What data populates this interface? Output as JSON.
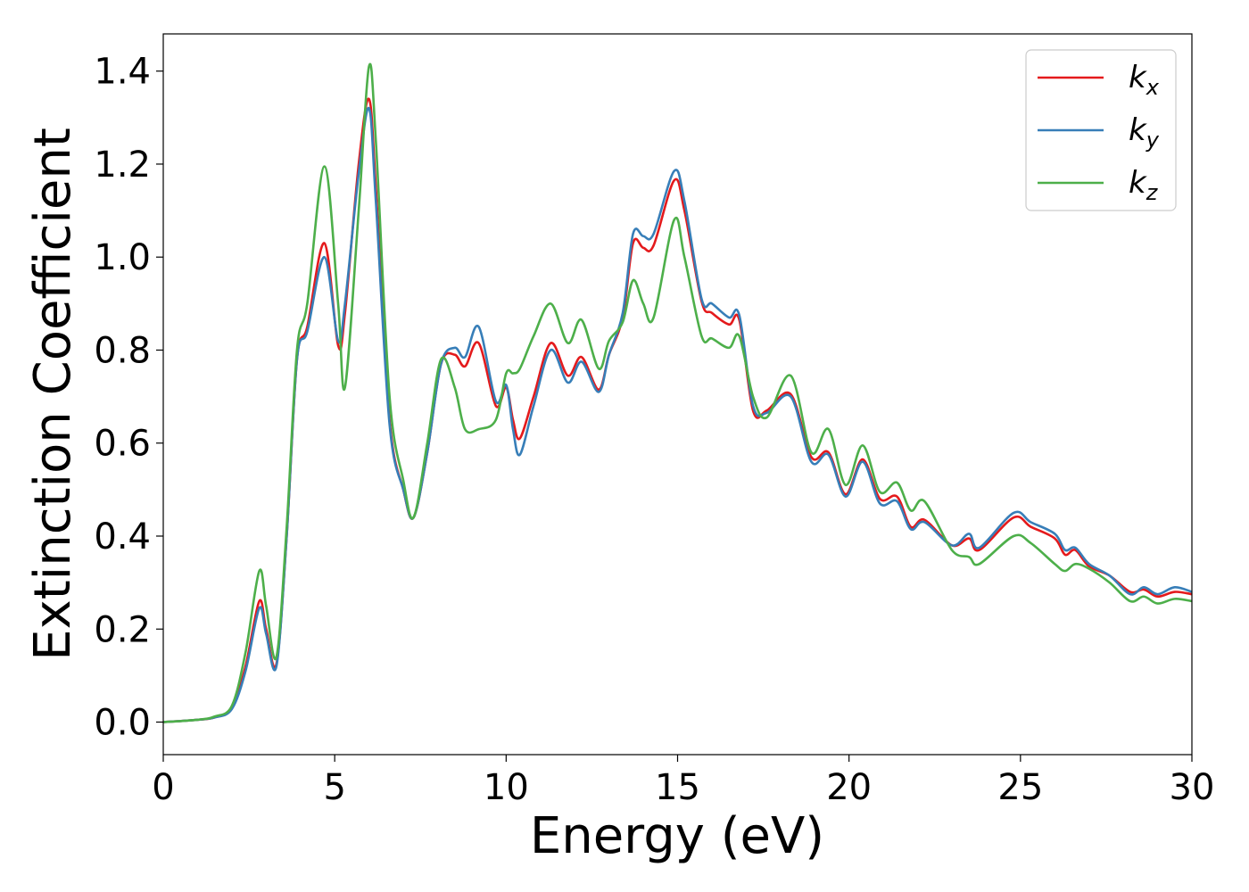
{
  "chart_data": {
    "type": "line",
    "xlabel": "Energy (eV)",
    "ylabel": "Extinction Coefficient",
    "xlim": [
      0,
      30
    ],
    "ylim": [
      -0.07,
      1.48
    ],
    "xticks": [
      0,
      5,
      10,
      15,
      20,
      25,
      30
    ],
    "xtick_labels": [
      "0",
      "5",
      "10",
      "15",
      "20",
      "25",
      "30"
    ],
    "yticks": [
      0.0,
      0.2,
      0.4,
      0.6,
      0.8,
      1.0,
      1.2,
      1.4
    ],
    "ytick_labels": [
      "0.0",
      "0.2",
      "0.4",
      "0.6",
      "0.8",
      "1.0",
      "1.2",
      "1.4"
    ],
    "grid": false,
    "legend_position": "top-right",
    "series": [
      {
        "name": "k",
        "subscript": "x",
        "color": "#e41a1c",
        "points": [
          [
            0,
            0
          ],
          [
            1,
            0.005
          ],
          [
            1.5,
            0.01
          ],
          [
            2,
            0.03
          ],
          [
            2.4,
            0.12
          ],
          [
            2.8,
            0.26
          ],
          [
            3.0,
            0.2
          ],
          [
            3.3,
            0.125
          ],
          [
            3.6,
            0.4
          ],
          [
            3.9,
            0.78
          ],
          [
            4.2,
            0.85
          ],
          [
            4.7,
            1.03
          ],
          [
            5.1,
            0.81
          ],
          [
            5.3,
            0.88
          ],
          [
            5.7,
            1.2
          ],
          [
            6.0,
            1.34
          ],
          [
            6.2,
            1.15
          ],
          [
            6.6,
            0.65
          ],
          [
            7.0,
            0.5
          ],
          [
            7.3,
            0.44
          ],
          [
            7.7,
            0.58
          ],
          [
            8.1,
            0.77
          ],
          [
            8.5,
            0.79
          ],
          [
            8.8,
            0.765
          ],
          [
            9.2,
            0.815
          ],
          [
            9.7,
            0.68
          ],
          [
            10.0,
            0.72
          ],
          [
            10.2,
            0.65
          ],
          [
            10.4,
            0.61
          ],
          [
            10.8,
            0.7
          ],
          [
            11.3,
            0.815
          ],
          [
            11.8,
            0.745
          ],
          [
            12.2,
            0.785
          ],
          [
            12.7,
            0.715
          ],
          [
            13.0,
            0.79
          ],
          [
            13.4,
            0.87
          ],
          [
            13.7,
            1.03
          ],
          [
            14.0,
            1.02
          ],
          [
            14.3,
            1.025
          ],
          [
            14.9,
            1.165
          ],
          [
            15.2,
            1.1
          ],
          [
            15.7,
            0.905
          ],
          [
            16.0,
            0.88
          ],
          [
            16.5,
            0.855
          ],
          [
            16.8,
            0.865
          ],
          [
            17.2,
            0.67
          ],
          [
            17.6,
            0.67
          ],
          [
            18.3,
            0.705
          ],
          [
            18.9,
            0.57
          ],
          [
            19.4,
            0.58
          ],
          [
            19.9,
            0.49
          ],
          [
            20.4,
            0.565
          ],
          [
            20.9,
            0.48
          ],
          [
            21.4,
            0.485
          ],
          [
            21.8,
            0.42
          ],
          [
            22.2,
            0.435
          ],
          [
            23.0,
            0.38
          ],
          [
            23.5,
            0.395
          ],
          [
            23.8,
            0.37
          ],
          [
            24.8,
            0.44
          ],
          [
            25.3,
            0.42
          ],
          [
            26.0,
            0.395
          ],
          [
            26.3,
            0.36
          ],
          [
            26.6,
            0.37
          ],
          [
            27.0,
            0.335
          ],
          [
            27.6,
            0.315
          ],
          [
            28.2,
            0.28
          ],
          [
            28.6,
            0.285
          ],
          [
            29.0,
            0.27
          ],
          [
            29.5,
            0.28
          ],
          [
            30.0,
            0.275
          ]
        ]
      },
      {
        "name": "k",
        "subscript": "y",
        "color": "#377eb8",
        "points": [
          [
            0,
            0
          ],
          [
            1,
            0.005
          ],
          [
            1.5,
            0.01
          ],
          [
            2,
            0.028
          ],
          [
            2.4,
            0.11
          ],
          [
            2.8,
            0.245
          ],
          [
            3.0,
            0.19
          ],
          [
            3.3,
            0.12
          ],
          [
            3.6,
            0.4
          ],
          [
            3.9,
            0.78
          ],
          [
            4.2,
            0.84
          ],
          [
            4.7,
            1.0
          ],
          [
            5.1,
            0.82
          ],
          [
            5.3,
            0.9
          ],
          [
            5.7,
            1.18
          ],
          [
            6.0,
            1.32
          ],
          [
            6.2,
            1.12
          ],
          [
            6.6,
            0.64
          ],
          [
            7.0,
            0.5
          ],
          [
            7.3,
            0.44
          ],
          [
            7.7,
            0.58
          ],
          [
            8.1,
            0.77
          ],
          [
            8.5,
            0.805
          ],
          [
            8.8,
            0.785
          ],
          [
            9.2,
            0.85
          ],
          [
            9.7,
            0.69
          ],
          [
            10.0,
            0.725
          ],
          [
            10.2,
            0.63
          ],
          [
            10.4,
            0.575
          ],
          [
            10.8,
            0.68
          ],
          [
            11.3,
            0.8
          ],
          [
            11.8,
            0.73
          ],
          [
            12.2,
            0.775
          ],
          [
            12.7,
            0.71
          ],
          [
            13.0,
            0.79
          ],
          [
            13.4,
            0.88
          ],
          [
            13.7,
            1.05
          ],
          [
            14.0,
            1.045
          ],
          [
            14.3,
            1.05
          ],
          [
            14.9,
            1.185
          ],
          [
            15.2,
            1.12
          ],
          [
            15.7,
            0.91
          ],
          [
            16.0,
            0.9
          ],
          [
            16.5,
            0.87
          ],
          [
            16.8,
            0.875
          ],
          [
            17.2,
            0.68
          ],
          [
            17.6,
            0.665
          ],
          [
            18.3,
            0.7
          ],
          [
            18.9,
            0.56
          ],
          [
            19.4,
            0.575
          ],
          [
            19.9,
            0.485
          ],
          [
            20.4,
            0.56
          ],
          [
            20.9,
            0.47
          ],
          [
            21.4,
            0.475
          ],
          [
            21.8,
            0.415
          ],
          [
            22.2,
            0.43
          ],
          [
            23.0,
            0.38
          ],
          [
            23.5,
            0.405
          ],
          [
            23.8,
            0.375
          ],
          [
            24.8,
            0.45
          ],
          [
            25.3,
            0.43
          ],
          [
            26.0,
            0.405
          ],
          [
            26.3,
            0.37
          ],
          [
            26.6,
            0.375
          ],
          [
            27.0,
            0.34
          ],
          [
            27.6,
            0.315
          ],
          [
            28.2,
            0.275
          ],
          [
            28.6,
            0.29
          ],
          [
            29.0,
            0.275
          ],
          [
            29.5,
            0.29
          ],
          [
            30.0,
            0.28
          ]
        ]
      },
      {
        "name": "k",
        "subscript": "z",
        "color": "#4daf4a",
        "points": [
          [
            0,
            0
          ],
          [
            1,
            0.005
          ],
          [
            1.5,
            0.012
          ],
          [
            2,
            0.035
          ],
          [
            2.4,
            0.15
          ],
          [
            2.8,
            0.325
          ],
          [
            3.0,
            0.25
          ],
          [
            3.3,
            0.14
          ],
          [
            3.6,
            0.42
          ],
          [
            3.9,
            0.8
          ],
          [
            4.2,
            0.9
          ],
          [
            4.7,
            1.195
          ],
          [
            5.1,
            0.9
          ],
          [
            5.3,
            0.72
          ],
          [
            5.7,
            1.1
          ],
          [
            6.0,
            1.41
          ],
          [
            6.2,
            1.25
          ],
          [
            6.6,
            0.7
          ],
          [
            7.0,
            0.52
          ],
          [
            7.3,
            0.44
          ],
          [
            7.7,
            0.6
          ],
          [
            8.1,
            0.78
          ],
          [
            8.5,
            0.72
          ],
          [
            8.8,
            0.63
          ],
          [
            9.2,
            0.63
          ],
          [
            9.7,
            0.65
          ],
          [
            10.0,
            0.75
          ],
          [
            10.2,
            0.75
          ],
          [
            10.4,
            0.76
          ],
          [
            10.8,
            0.83
          ],
          [
            11.3,
            0.9
          ],
          [
            11.8,
            0.815
          ],
          [
            12.2,
            0.865
          ],
          [
            12.7,
            0.76
          ],
          [
            13.0,
            0.82
          ],
          [
            13.4,
            0.86
          ],
          [
            13.7,
            0.95
          ],
          [
            14.0,
            0.9
          ],
          [
            14.3,
            0.87
          ],
          [
            14.9,
            1.08
          ],
          [
            15.2,
            1.0
          ],
          [
            15.7,
            0.83
          ],
          [
            16.0,
            0.825
          ],
          [
            16.5,
            0.805
          ],
          [
            16.8,
            0.83
          ],
          [
            17.2,
            0.7
          ],
          [
            17.6,
            0.655
          ],
          [
            18.3,
            0.745
          ],
          [
            18.9,
            0.58
          ],
          [
            19.4,
            0.63
          ],
          [
            19.9,
            0.51
          ],
          [
            20.4,
            0.595
          ],
          [
            20.9,
            0.495
          ],
          [
            21.4,
            0.515
          ],
          [
            21.8,
            0.455
          ],
          [
            22.2,
            0.475
          ],
          [
            23.0,
            0.37
          ],
          [
            23.5,
            0.355
          ],
          [
            23.8,
            0.34
          ],
          [
            24.8,
            0.4
          ],
          [
            25.3,
            0.385
          ],
          [
            26.0,
            0.34
          ],
          [
            26.3,
            0.325
          ],
          [
            26.6,
            0.34
          ],
          [
            27.0,
            0.33
          ],
          [
            27.6,
            0.3
          ],
          [
            28.2,
            0.26
          ],
          [
            28.6,
            0.27
          ],
          [
            29.0,
            0.255
          ],
          [
            29.5,
            0.265
          ],
          [
            30.0,
            0.26
          ]
        ]
      }
    ]
  }
}
